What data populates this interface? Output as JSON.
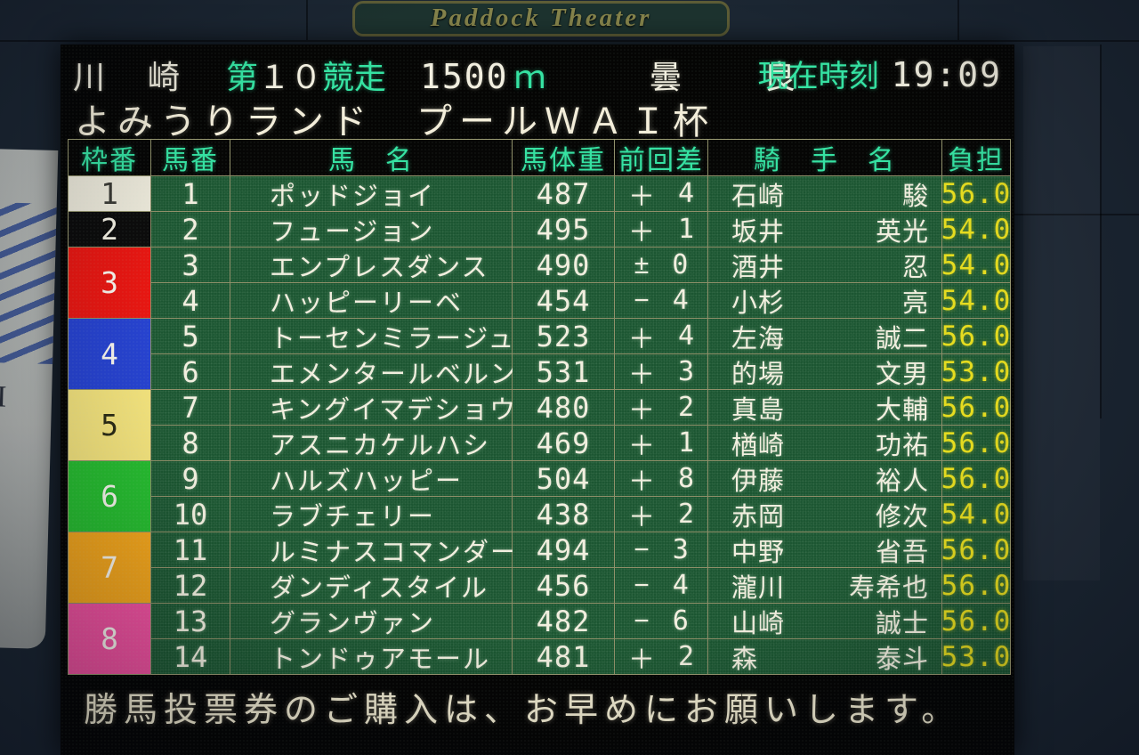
{
  "sign": {
    "title": "Paddock Theater"
  },
  "wall": {
    "poster_letter": "I"
  },
  "header": {
    "track": "川　崎",
    "race_prefix": "第",
    "race_number": "１０",
    "race_suffix": "競走",
    "distance": "1500",
    "distance_unit": "ｍ",
    "weather": "曇",
    "going": "良",
    "clock_label": "現在時刻",
    "clock_time": "19:09",
    "race_title": "よみうりランド　プールＷＡＩ杯"
  },
  "table": {
    "columns": [
      "枠番",
      "馬番",
      "馬　名",
      "馬体重",
      "前回差",
      "騎　手　名",
      "負担"
    ],
    "frames": [
      {
        "no": "1",
        "rows": 1,
        "bg": "#ece9da",
        "fg": "#3a3a34"
      },
      {
        "no": "2",
        "rows": 1,
        "bg": "#0c0c0c",
        "fg": "#f2efe2"
      },
      {
        "no": "3",
        "rows": 2,
        "bg": "#e71712",
        "fg": "#f7f4ec"
      },
      {
        "no": "4",
        "rows": 2,
        "bg": "#2743cf",
        "fg": "#f7f4ec"
      },
      {
        "no": "5",
        "rows": 2,
        "bg": "#f2e27c",
        "fg": "#2a2a14"
      },
      {
        "no": "6",
        "rows": 2,
        "bg": "#27bc30",
        "fg": "#f7f4ec"
      },
      {
        "no": "7",
        "rows": 2,
        "bg": "#f2a51c",
        "fg": "#f7f4ec"
      },
      {
        "no": "8",
        "rows": 2,
        "bg": "#f0519f",
        "fg": "#f7f4ec"
      }
    ],
    "horses": [
      {
        "no": "1",
        "name": "ポッドジョイ",
        "weight": "487",
        "diff_sign": "＋",
        "diff_value": "4",
        "jockey_last": "石崎",
        "jockey_first": "駿",
        "carry": "56.0"
      },
      {
        "no": "2",
        "name": "フュージョン",
        "weight": "495",
        "diff_sign": "＋",
        "diff_value": "1",
        "jockey_last": "坂井",
        "jockey_first": "英光",
        "carry": "54.0"
      },
      {
        "no": "3",
        "name": "エンプレスダンス",
        "weight": "490",
        "diff_sign": "±",
        "diff_value": "0",
        "jockey_last": "酒井",
        "jockey_first": "忍",
        "carry": "54.0"
      },
      {
        "no": "4",
        "name": "ハッピーリーベ",
        "weight": "454",
        "diff_sign": "−",
        "diff_value": "4",
        "jockey_last": "小杉",
        "jockey_first": "亮",
        "carry": "54.0"
      },
      {
        "no": "5",
        "name": "トーセンミラージュ",
        "weight": "523",
        "diff_sign": "＋",
        "diff_value": "4",
        "jockey_last": "左海",
        "jockey_first": "誠二",
        "carry": "56.0"
      },
      {
        "no": "6",
        "name": "エメンタールベルン",
        "weight": "531",
        "diff_sign": "＋",
        "diff_value": "3",
        "jockey_last": "的場",
        "jockey_first": "文男",
        "carry": "53.0"
      },
      {
        "no": "7",
        "name": "キングイマデショウ",
        "weight": "480",
        "diff_sign": "＋",
        "diff_value": "2",
        "jockey_last": "真島",
        "jockey_first": "大輔",
        "carry": "56.0"
      },
      {
        "no": "8",
        "name": "アスニカケルハシ",
        "weight": "469",
        "diff_sign": "＋",
        "diff_value": "1",
        "jockey_last": "楢崎",
        "jockey_first": "功祐",
        "carry": "56.0"
      },
      {
        "no": "9",
        "name": "ハルズハッピー",
        "weight": "504",
        "diff_sign": "＋",
        "diff_value": "8",
        "jockey_last": "伊藤",
        "jockey_first": "裕人",
        "carry": "56.0"
      },
      {
        "no": "10",
        "name": "ラブチェリー",
        "weight": "438",
        "diff_sign": "＋",
        "diff_value": "2",
        "jockey_last": "赤岡",
        "jockey_first": "修次",
        "carry": "54.0"
      },
      {
        "no": "11",
        "name": "ルミナスコマンダー",
        "weight": "494",
        "diff_sign": "−",
        "diff_value": "3",
        "jockey_last": "中野",
        "jockey_first": "省吾",
        "carry": "56.0"
      },
      {
        "no": "12",
        "name": "ダンディスタイル",
        "weight": "456",
        "diff_sign": "−",
        "diff_value": "4",
        "jockey_last": "瀧川",
        "jockey_first": "寿希也",
        "carry": "56.0"
      },
      {
        "no": "13",
        "name": "グランヴァン",
        "weight": "482",
        "diff_sign": "−",
        "diff_value": "6",
        "jockey_last": "山崎",
        "jockey_first": "誠士",
        "carry": "56.0"
      },
      {
        "no": "14",
        "name": "トンドゥアモール",
        "weight": "481",
        "diff_sign": "＋",
        "diff_value": "2",
        "jockey_last": "森",
        "jockey_first": "泰斗",
        "carry": "53.0"
      }
    ]
  },
  "footer": {
    "message": "勝馬投票券のご購入は、お早めにお願いします。"
  },
  "colors": {
    "board_bg": "#050504",
    "cell_green": "#1a5530",
    "grid_line": "#90906a",
    "accent_green": "#34e3a2",
    "text_cream": "#f2efe0",
    "carry_yellow": "#e6dc1e",
    "wall": "#1c2733",
    "sign_text": "#85834b"
  }
}
